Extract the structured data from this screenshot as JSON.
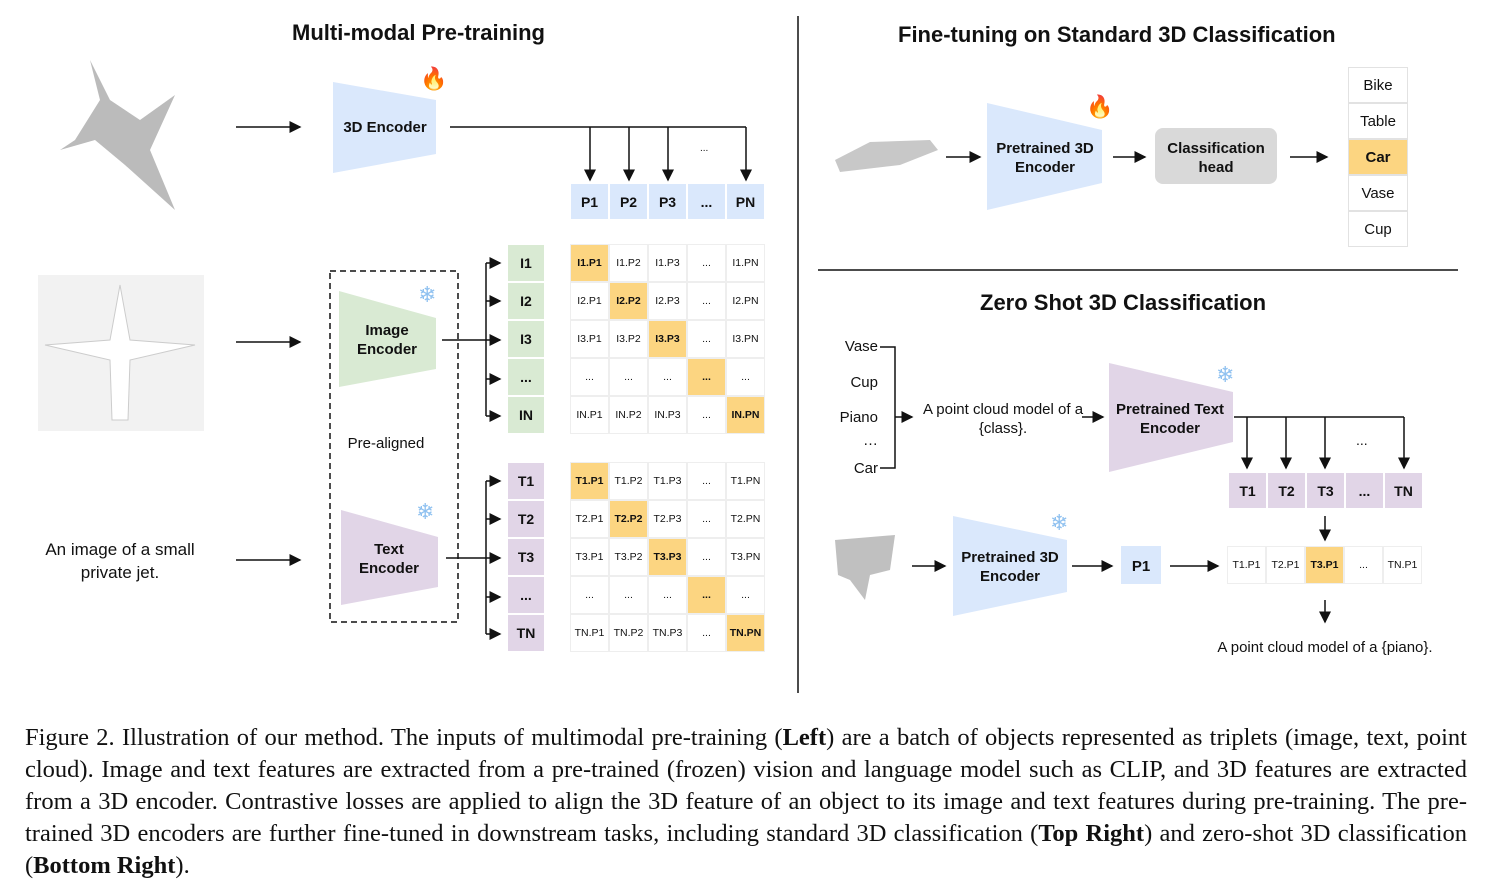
{
  "left": {
    "title": "Multi-modal Pre-training",
    "encoders": {
      "3d": "3D Encoder",
      "image": "Image Encoder",
      "text": "Text Encoder"
    },
    "pre_aligned": "Pre-aligned",
    "text_input": "An image of a small private jet.",
    "p_row": [
      "P1",
      "P2",
      "P3",
      "...",
      "PN"
    ],
    "p_dots": "...",
    "image_rows": [
      "I1",
      "I2",
      "I3",
      "...",
      "IN"
    ],
    "image_matrix": [
      [
        "I1.P1",
        "I1.P2",
        "I1.P3",
        "...",
        "I1.PN"
      ],
      [
        "I2.P1",
        "I2.P2",
        "I2.P3",
        "...",
        "I2.PN"
      ],
      [
        "I3.P1",
        "I3.P2",
        "I3.P3",
        "...",
        "I3.PN"
      ],
      [
        "...",
        "...",
        "...",
        "...",
        "..."
      ],
      [
        "IN.P1",
        "IN.P2",
        "IN.P3",
        "...",
        "IN.PN"
      ]
    ],
    "text_rows": [
      "T1",
      "T2",
      "T3",
      "...",
      "TN"
    ],
    "text_matrix": [
      [
        "T1.P1",
        "T1.P2",
        "T1.P3",
        "...",
        "T1.PN"
      ],
      [
        "T2.P1",
        "T2.P2",
        "T2.P3",
        "...",
        "T2.PN"
      ],
      [
        "T3.P1",
        "T3.P2",
        "T3.P3",
        "...",
        "T3.PN"
      ],
      [
        "...",
        "...",
        "...",
        "...",
        "..."
      ],
      [
        "TN.P1",
        "TN.P2",
        "TN.P3",
        "...",
        "TN.PN"
      ]
    ]
  },
  "fine_tune": {
    "title": "Fine-tuning on Standard 3D Classification",
    "encoder": "Pretrained 3D Encoder",
    "head": "Classification head",
    "classes": [
      "Bike",
      "Table",
      "Car",
      "Vase",
      "Cup"
    ],
    "selected": "Car"
  },
  "zero_shot": {
    "title": "Zero Shot 3D Classification",
    "classes": [
      "Vase",
      "Cup",
      "Piano",
      "…",
      "Car"
    ],
    "prompt": "A point cloud model of a {class}.",
    "text_encoder": "Pretrained Text Encoder",
    "pc_encoder": "Pretrained 3D Encoder",
    "p1": "P1",
    "t_row": [
      "T1",
      "T2",
      "T3",
      "...",
      "TN"
    ],
    "t_dots": "...",
    "scores": [
      "T1.P1",
      "T2.P1",
      "T3.P1",
      "...",
      "TN.P1"
    ],
    "selected": "T3.P1",
    "result": "A point cloud model of a {piano}."
  },
  "colors": {
    "highlight": "#fcd581",
    "point": "#dae8fc",
    "image": "#d9ead3",
    "text": "#e1d5e7",
    "head": "#d9d9d9"
  },
  "caption": [
    {
      "t": "Figure 2. Illustration of our method. The inputs of multimodal pre-training ("
    },
    {
      "t": "Left",
      "b": true
    },
    {
      "t": ") are a batch of objects represented as triplets (image, text, point cloud). Image and text features are extracted from a pre-trained (frozen) vision and language model such as CLIP, and 3D features are extracted from a 3D encoder. Contrastive losses are applied to align the 3D feature of an object to its image and text features during pre-training. The pre-trained 3D encoders are further fine-tuned in downstream tasks, including standard 3D classification ("
    },
    {
      "t": "Top Right",
      "b": true
    },
    {
      "t": ") and zero-shot 3D classification ("
    },
    {
      "t": "Bottom Right",
      "b": true
    },
    {
      "t": ")."
    }
  ]
}
